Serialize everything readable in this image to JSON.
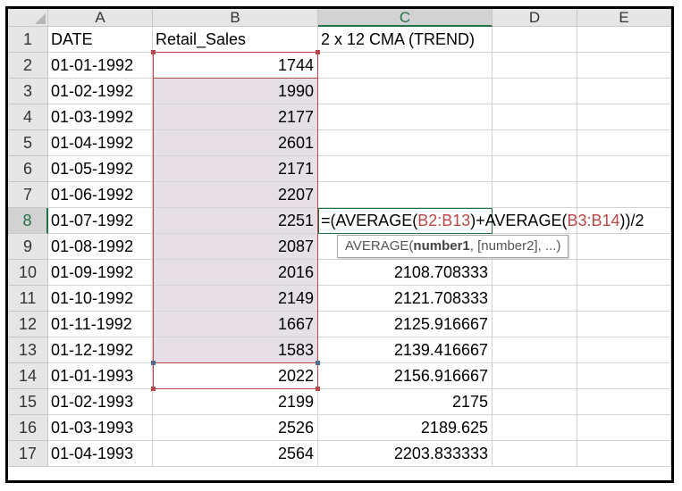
{
  "columns": [
    "A",
    "B",
    "C",
    "D",
    "E"
  ],
  "selected_column": "C",
  "rows": [
    {
      "num": "1",
      "a": "DATE",
      "b": "Retail_Sales",
      "c": "2 x 12 CMA (TREND)"
    },
    {
      "num": "2",
      "a": "01-01-1992",
      "b": "1744",
      "c": ""
    },
    {
      "num": "3",
      "a": "01-02-1992",
      "b": "1990",
      "c": ""
    },
    {
      "num": "4",
      "a": "01-03-1992",
      "b": "2177",
      "c": ""
    },
    {
      "num": "5",
      "a": "01-04-1992",
      "b": "2601",
      "c": ""
    },
    {
      "num": "6",
      "a": "01-05-1992",
      "b": "2171",
      "c": ""
    },
    {
      "num": "7",
      "a": "01-06-1992",
      "b": "2207",
      "c": ""
    },
    {
      "num": "8",
      "a": "01-07-1992",
      "b": "2251",
      "c": ""
    },
    {
      "num": "9",
      "a": "01-08-1992",
      "b": "2087",
      "c": ""
    },
    {
      "num": "10",
      "a": "01-09-1992",
      "b": "2016",
      "c": "2108.708333"
    },
    {
      "num": "11",
      "a": "01-10-1992",
      "b": "2149",
      "c": "2121.708333"
    },
    {
      "num": "12",
      "a": "01-11-1992",
      "b": "1667",
      "c": "2125.916667"
    },
    {
      "num": "13",
      "a": "01-12-1992",
      "b": "1583",
      "c": "2139.416667"
    },
    {
      "num": "14",
      "a": "01-01-1993",
      "b": "2022",
      "c": "2156.916667"
    },
    {
      "num": "15",
      "a": "01-02-1993",
      "b": "2199",
      "c": "2175"
    },
    {
      "num": "16",
      "a": "01-03-1993",
      "b": "2526",
      "c": "2189.625"
    },
    {
      "num": "17",
      "a": "01-04-1993",
      "b": "2564",
      "c": "2203.833333"
    }
  ],
  "active_cell": {
    "row": "8",
    "formula_parts": [
      "=(AVERAGE(",
      "B2:B13",
      ")+AVERAGE(",
      "B3:B14",
      "))/2"
    ]
  },
  "tooltip": {
    "func": "AVERAGE(",
    "arg1": "number1",
    "rest": ", [number2], ...)"
  },
  "colors": {
    "range_ref": "#b94747",
    "selection_green": "#217346",
    "range_shade": "#e7dfe6"
  }
}
